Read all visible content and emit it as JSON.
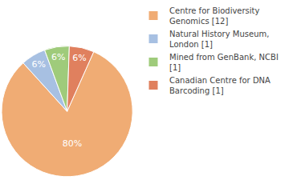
{
  "chart_data": {
    "type": "pie",
    "categories": [
      "Centre for Biodiversity Genomics [12]",
      "Natural History Museum, London [1]",
      "Mined from GenBank, NCBI [1]",
      "Canadian Centre for DNA Barcoding [1]"
    ],
    "values": [
      80,
      6,
      6,
      6
    ],
    "value_labels": [
      "80%",
      "6%",
      "6%",
      "6%"
    ],
    "data_labels": true,
    "colors": [
      "#f0ac74",
      "#a7c0e2",
      "#9fcb7b",
      "#e0805e"
    ],
    "legend": "right"
  }
}
